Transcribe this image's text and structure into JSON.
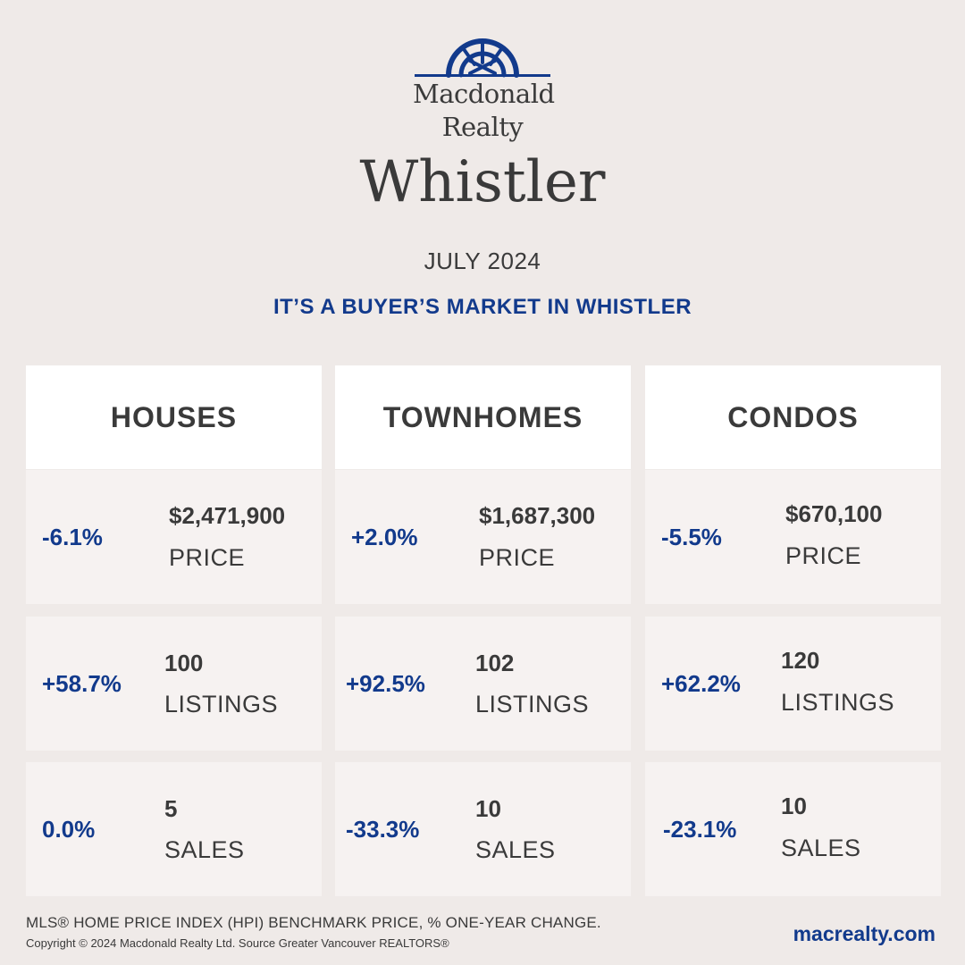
{
  "brand": {
    "line1": "Macdonald",
    "line2": "Realty",
    "logo_icon": "sunburst-arch-logo",
    "brand_color": "#123a8c"
  },
  "title": "Whistler",
  "date": "JULY 2024",
  "headline": "IT’S A BUYER’S MARKET IN WHISTLER",
  "columns": [
    {
      "header": "HOUSES",
      "metrics": [
        {
          "change": "-6.1%",
          "value": "$2,471,900",
          "label": "PRICE"
        },
        {
          "change": "+58.7%",
          "value": "100",
          "label": "LISTINGS"
        },
        {
          "change": "0.0%",
          "value": "5",
          "label": "SALES"
        }
      ]
    },
    {
      "header": "TOWNHOMES",
      "metrics": [
        {
          "change": "+2.0%",
          "value": "$1,687,300",
          "label": "PRICE"
        },
        {
          "change": "+92.5%",
          "value": "102",
          "label": "LISTINGS"
        },
        {
          "change": "-33.3%",
          "value": "10",
          "label": "SALES"
        }
      ]
    },
    {
      "header": "CONDOS",
      "metrics": [
        {
          "change": "-5.5%",
          "value": "$670,100",
          "label": "PRICE"
        },
        {
          "change": "+62.2%",
          "value": "120",
          "label": "LISTINGS"
        },
        {
          "change": "-23.1%",
          "value": "10",
          "label": "SALES"
        }
      ]
    }
  ],
  "footer": {
    "note": "MLS® HOME PRICE INDEX (HPI) BENCHMARK PRICE, % ONE-YEAR CHANGE.",
    "copyright": "Copyright © 2024 Macdonald Realty Ltd. Source Greater Vancouver REALTORS®",
    "website": "macrealty.com"
  }
}
